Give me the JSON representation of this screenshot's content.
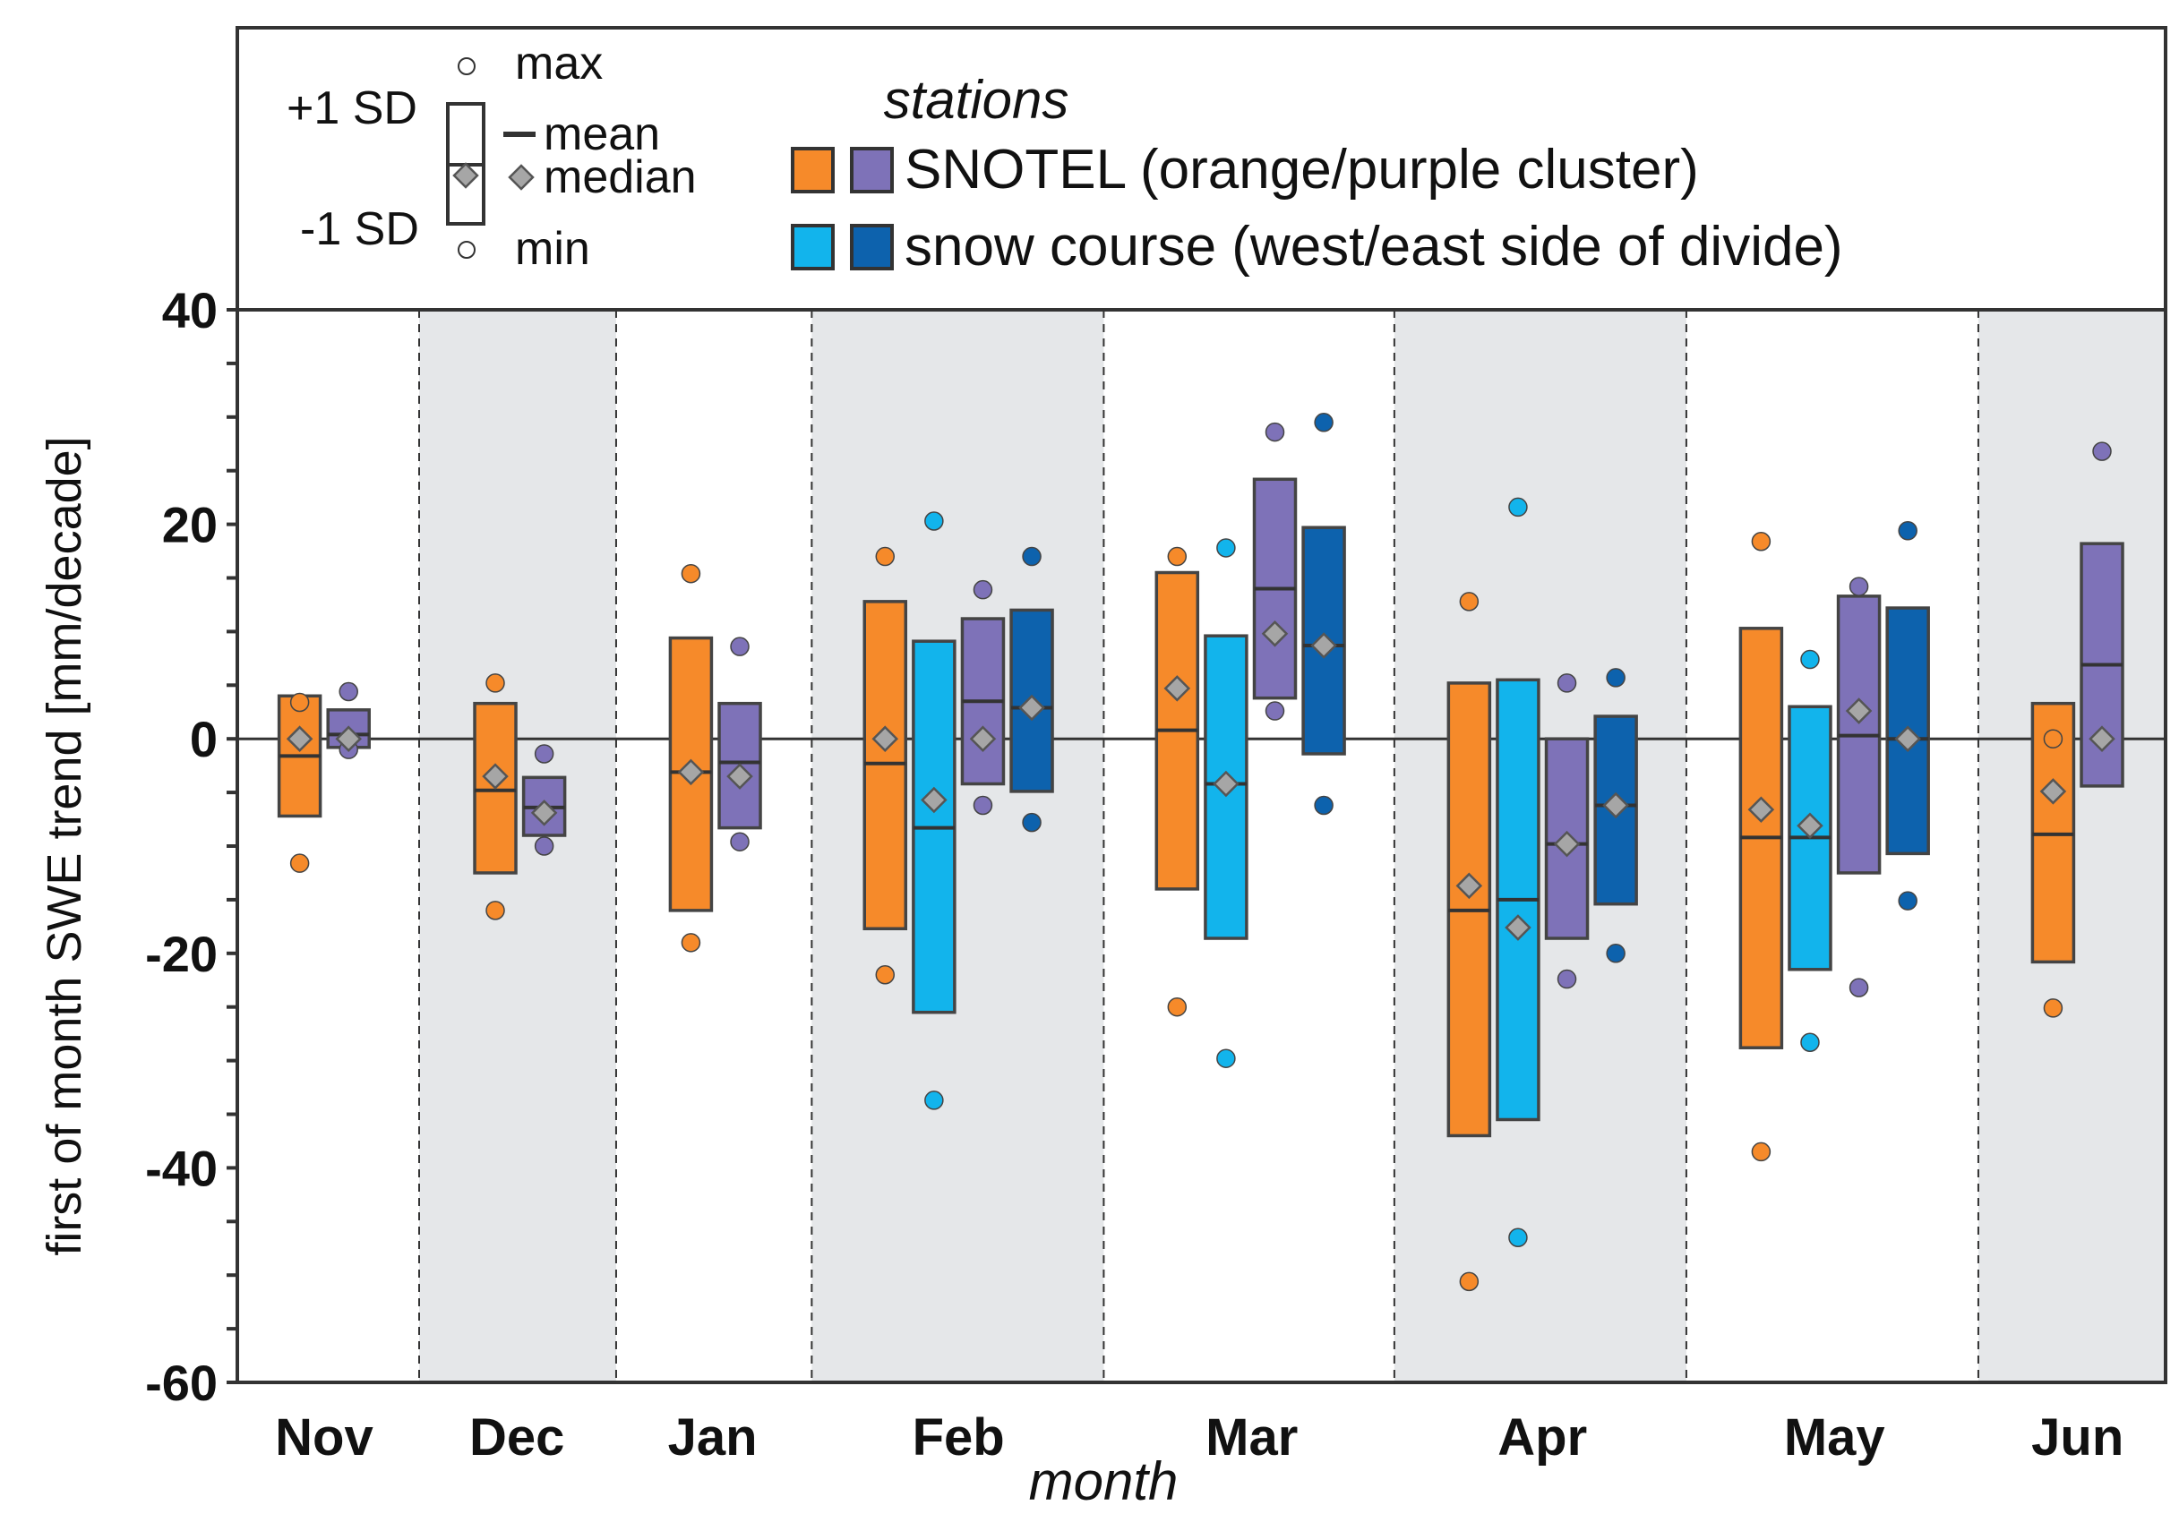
{
  "chart_data": {
    "type": "box",
    "title": "",
    "xlabel": "month",
    "ylabel": "first of month SWE trend [mm/decade]",
    "ylim": [
      -60,
      40
    ],
    "yticks": [
      40,
      20,
      0,
      -20,
      -40,
      -60
    ],
    "categories": [
      "Nov",
      "Dec",
      "Jan",
      "Feb",
      "Mar",
      "Apr",
      "May",
      "Jun"
    ],
    "shaded_months": [
      "Dec",
      "Feb",
      "Apr",
      "Jun"
    ],
    "legend": {
      "title": "stations",
      "entries": [
        {
          "label": "SNOTEL (orange/purple cluster)",
          "colors": [
            "#f68a2a",
            "#7e72b8"
          ]
        },
        {
          "label": "snow course (west/east side of divide)",
          "colors": [
            "#12b4ec",
            "#0d62ad"
          ]
        }
      ],
      "key": {
        "max": "max",
        "plus_sd": "+1 SD",
        "mean": "mean",
        "median": "median",
        "minus_sd": "-1 SD",
        "min": "min"
      }
    },
    "series_colors": {
      "snotel_orange": "#f68a2a",
      "snotel_purple": "#7e72b8",
      "course_west": "#12b4ec",
      "course_east": "#0d62ad"
    },
    "data": [
      {
        "month": "Nov",
        "boxes": [
          {
            "series": "snotel_orange",
            "sd_high": 4,
            "sd_low": -7.2,
            "mean": -1.6,
            "median": 0,
            "max": 3.4,
            "min": -11.6
          },
          {
            "series": "snotel_purple",
            "sd_high": 2.7,
            "sd_low": -0.8,
            "mean": 0.4,
            "median": 0,
            "max": 4.4,
            "min": -1
          }
        ]
      },
      {
        "month": "Dec",
        "boxes": [
          {
            "series": "snotel_orange",
            "sd_high": 3.3,
            "sd_low": -12.5,
            "mean": -4.8,
            "median": -3.5,
            "max": 5.2,
            "min": -16
          },
          {
            "series": "snotel_purple",
            "sd_high": -3.6,
            "sd_low": -9,
            "mean": -6.4,
            "median": -6.9,
            "max": -1.4,
            "min": -10
          }
        ]
      },
      {
        "month": "Jan",
        "boxes": [
          {
            "series": "snotel_orange",
            "sd_high": 9.4,
            "sd_low": -16,
            "mean": -3.1,
            "median": -3.1,
            "max": 15.4,
            "min": -19
          },
          {
            "series": "snotel_purple",
            "sd_high": 3.3,
            "sd_low": -8.3,
            "mean": -2.2,
            "median": -3.5,
            "max": 8.6,
            "min": -9.6
          }
        ]
      },
      {
        "month": "Feb",
        "boxes": [
          {
            "series": "snotel_orange",
            "sd_high": 12.8,
            "sd_low": -17.7,
            "mean": -2.3,
            "median": 0,
            "max": 17,
            "min": -22
          },
          {
            "series": "course_west",
            "sd_high": 9.1,
            "sd_low": -25.5,
            "mean": -8.3,
            "median": -5.7,
            "max": 20.3,
            "min": -33.7
          },
          {
            "series": "snotel_purple",
            "sd_high": 11.2,
            "sd_low": -4.2,
            "mean": 3.5,
            "median": 0,
            "max": 13.9,
            "min": -6.2
          },
          {
            "series": "course_east",
            "sd_high": 12,
            "sd_low": -4.9,
            "mean": 2.9,
            "median": 2.9,
            "max": 17,
            "min": -7.8
          }
        ]
      },
      {
        "month": "Mar",
        "boxes": [
          {
            "series": "snotel_orange",
            "sd_high": 15.5,
            "sd_low": -14,
            "mean": 0.8,
            "median": 4.7,
            "max": 17,
            "min": -25
          },
          {
            "series": "course_west",
            "sd_high": 9.6,
            "sd_low": -18.6,
            "mean": -4.2,
            "median": -4.2,
            "max": 17.8,
            "min": -29.8
          },
          {
            "series": "snotel_purple",
            "sd_high": 24.2,
            "sd_low": 3.8,
            "mean": 14,
            "median": 9.8,
            "max": 28.6,
            "min": 2.6
          },
          {
            "series": "course_east",
            "sd_high": 19.7,
            "sd_low": -1.4,
            "mean": 8.7,
            "median": 8.7,
            "max": 29.5,
            "min": -6.2
          }
        ]
      },
      {
        "month": "Apr",
        "boxes": [
          {
            "series": "snotel_orange",
            "sd_high": 5.2,
            "sd_low": -37,
            "mean": -16,
            "median": -13.7,
            "max": 12.8,
            "min": -50.6
          },
          {
            "series": "course_west",
            "sd_high": 5.5,
            "sd_low": -35.5,
            "mean": -15,
            "median": -17.6,
            "max": 21.6,
            "min": -46.5
          },
          {
            "series": "snotel_purple",
            "sd_high": 0,
            "sd_low": -18.6,
            "mean": -9.8,
            "median": -9.8,
            "max": 5.2,
            "min": -22.4
          },
          {
            "series": "course_east",
            "sd_high": 2.1,
            "sd_low": -15.4,
            "mean": -6.2,
            "median": -6.2,
            "max": 5.7,
            "min": -20
          }
        ]
      },
      {
        "month": "May",
        "boxes": [
          {
            "series": "snotel_orange",
            "sd_high": 10.3,
            "sd_low": -28.8,
            "mean": -9.2,
            "median": -6.6,
            "max": 18.4,
            "min": -38.5
          },
          {
            "series": "course_west",
            "sd_high": 3,
            "sd_low": -21.5,
            "mean": -9.2,
            "median": -8.1,
            "max": 7.4,
            "min": -28.3
          },
          {
            "series": "snotel_purple",
            "sd_high": 13.3,
            "sd_low": -12.5,
            "mean": 0.3,
            "median": 2.6,
            "max": 14.2,
            "min": -23.2
          },
          {
            "series": "course_east",
            "sd_high": 12.2,
            "sd_low": -10.7,
            "mean": 0,
            "median": 0,
            "max": 19.4,
            "min": -15.1
          }
        ]
      },
      {
        "month": "Jun",
        "boxes": [
          {
            "series": "snotel_orange",
            "sd_high": 3.3,
            "sd_low": -20.8,
            "mean": -8.9,
            "median": -4.9,
            "max": 0,
            "min": -25.1
          },
          {
            "series": "snotel_purple",
            "sd_high": 18.2,
            "sd_low": -4.4,
            "mean": 6.9,
            "median": 0,
            "max": 26.8,
            "min": null
          }
        ]
      }
    ]
  }
}
